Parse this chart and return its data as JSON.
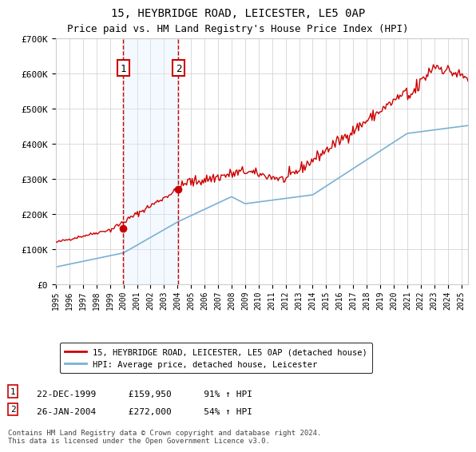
{
  "title": "15, HEYBRIDGE ROAD, LEICESTER, LE5 0AP",
  "subtitle": "Price paid vs. HM Land Registry's House Price Index (HPI)",
  "transaction1": {
    "date": "22-DEC-1999",
    "price": 159950,
    "label": "1",
    "year": 1999.97,
    "pct": "91% ↑ HPI"
  },
  "transaction2": {
    "date": "26-JAN-2004",
    "price": 272000,
    "label": "2",
    "year": 2004.07,
    "pct": "54% ↑ HPI"
  },
  "legend_line1": "15, HEYBRIDGE ROAD, LEICESTER, LE5 0AP (detached house)",
  "legend_line2": "HPI: Average price, detached house, Leicester",
  "footnote": "Contains HM Land Registry data © Crown copyright and database right 2024.\nThis data is licensed under the Open Government Licence v3.0.",
  "red_color": "#cc0000",
  "blue_color": "#7ab0d4",
  "shade_color": "#ddeeff",
  "ylim": [
    0,
    700000
  ],
  "xlim_start": 1995.0,
  "xlim_end": 2025.5
}
